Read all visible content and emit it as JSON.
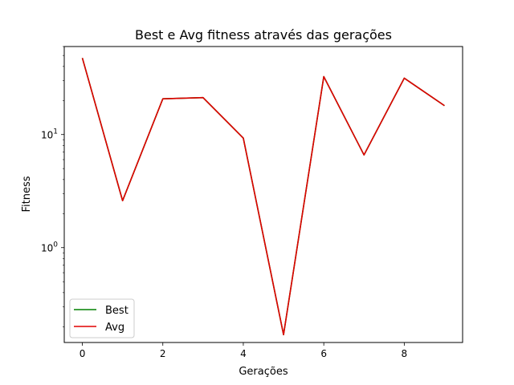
{
  "chart_data": {
    "type": "line",
    "title": "Best e Avg fitness através das gerações",
    "xlabel": "Gerações",
    "ylabel": "Fitness",
    "yscale": "log",
    "xlim": [
      -0.45,
      9.45
    ],
    "ylim": [
      0.145,
      60
    ],
    "x_ticks": [
      0,
      2,
      4,
      6,
      8
    ],
    "x_tick_labels": [
      "0",
      "2",
      "4",
      "6",
      "8"
    ],
    "y_ticks": [
      1,
      10
    ],
    "y_tick_labels": [
      {
        "base": "10",
        "exp": "0"
      },
      {
        "base": "10",
        "exp": "1"
      }
    ],
    "grid": false,
    "legend_position": "lower-left",
    "x": [
      0,
      1,
      2,
      3,
      4,
      5,
      6,
      7,
      8,
      9
    ],
    "series": [
      {
        "name": "Best",
        "color": "#008000",
        "values": [
          47.5,
          2.6,
          20.7,
          21.2,
          9.3,
          0.17,
          32.5,
          6.6,
          31.5,
          18.0
        ]
      },
      {
        "name": "Avg",
        "color": "#e00000",
        "values": [
          47.5,
          2.6,
          20.7,
          21.2,
          9.3,
          0.17,
          32.5,
          6.6,
          31.5,
          18.0
        ]
      }
    ]
  }
}
